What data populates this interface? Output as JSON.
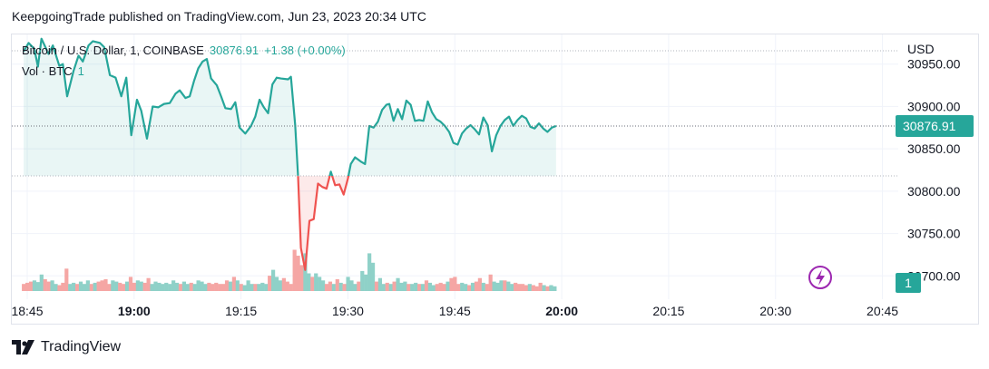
{
  "publisher_text": "KeepgoingTrade published on TradingView.com, Jun 23, 2023 20:34 UTC",
  "legend": {
    "symbol": "Bitcoin / U.S. Dollar, 1, COINBASE",
    "price": "30876.91",
    "change": "+1.38 (+0.00%)"
  },
  "volume_legend": {
    "label": "Vol · BTC",
    "value": "1"
  },
  "brand": {
    "name": "TradingView"
  },
  "colors": {
    "up": "#26a69a",
    "down": "#ef5350",
    "text": "#131722",
    "grid": "#f0f3fa"
  },
  "chart_data": {
    "type": "line",
    "ylabel": "USD",
    "ylim": [
      30680,
      30985
    ],
    "y_ticks": [
      "30950.00",
      "30900.00",
      "30850.00",
      "30800.00",
      "30750.00",
      "30700.00"
    ],
    "y_tick_values": [
      30950,
      30900,
      30850,
      30800,
      30750,
      30700
    ],
    "x_ticks": [
      {
        "label": "18:45",
        "minute": 0,
        "bold": false
      },
      {
        "label": "19:00",
        "minute": 15,
        "bold": true
      },
      {
        "label": "19:15",
        "minute": 30,
        "bold": false
      },
      {
        "label": "19:30",
        "minute": 45,
        "bold": false
      },
      {
        "label": "19:45",
        "minute": 60,
        "bold": false
      },
      {
        "label": "20:00",
        "minute": 75,
        "bold": true
      },
      {
        "label": "20:15",
        "minute": 90,
        "bold": false
      },
      {
        "label": "20:30",
        "minute": 105,
        "bold": false
      },
      {
        "label": "20:45",
        "minute": 120,
        "bold": false
      }
    ],
    "baseline": 30818,
    "last_price": 30876.91,
    "last_price_label": "30876.91",
    "volume_label": "1",
    "time_start": "18:45",
    "price": [
      {
        "t": -0.5,
        "y": 30965
      },
      {
        "t": 0.2,
        "y": 30975
      },
      {
        "t": 1.0,
        "y": 30968
      },
      {
        "t": 1.5,
        "y": 30947
      },
      {
        "t": 2.0,
        "y": 30980
      },
      {
        "t": 3.0,
        "y": 30962
      },
      {
        "t": 3.6,
        "y": 30972
      },
      {
        "t": 4.5,
        "y": 30948
      },
      {
        "t": 5.0,
        "y": 30950
      },
      {
        "t": 5.6,
        "y": 30912
      },
      {
        "t": 6.5,
        "y": 30942
      },
      {
        "t": 7.2,
        "y": 30960
      },
      {
        "t": 7.8,
        "y": 30953
      },
      {
        "t": 8.6,
        "y": 30972
      },
      {
        "t": 9.2,
        "y": 30977
      },
      {
        "t": 10.2,
        "y": 30975
      },
      {
        "t": 10.8,
        "y": 30970
      },
      {
        "t": 11.6,
        "y": 30937
      },
      {
        "t": 12.4,
        "y": 30934
      },
      {
        "t": 13.2,
        "y": 30912
      },
      {
        "t": 13.9,
        "y": 30934
      },
      {
        "t": 14.6,
        "y": 30866
      },
      {
        "t": 15.4,
        "y": 30908
      },
      {
        "t": 16.0,
        "y": 30895
      },
      {
        "t": 16.8,
        "y": 30862
      },
      {
        "t": 17.6,
        "y": 30900
      },
      {
        "t": 18.4,
        "y": 30899
      },
      {
        "t": 19.2,
        "y": 30903
      },
      {
        "t": 20.0,
        "y": 30904
      },
      {
        "t": 20.8,
        "y": 30915
      },
      {
        "t": 21.4,
        "y": 30919
      },
      {
        "t": 22.2,
        "y": 30910
      },
      {
        "t": 22.8,
        "y": 30912
      },
      {
        "t": 23.4,
        "y": 30930
      },
      {
        "t": 24.0,
        "y": 30945
      },
      {
        "t": 24.6,
        "y": 30953
      },
      {
        "t": 25.2,
        "y": 30956
      },
      {
        "t": 25.8,
        "y": 30933
      },
      {
        "t": 26.6,
        "y": 30925
      },
      {
        "t": 27.2,
        "y": 30912
      },
      {
        "t": 27.8,
        "y": 30898
      },
      {
        "t": 28.6,
        "y": 30897
      },
      {
        "t": 29.2,
        "y": 30905
      },
      {
        "t": 29.8,
        "y": 30875
      },
      {
        "t": 30.6,
        "y": 30868
      },
      {
        "t": 31.4,
        "y": 30877
      },
      {
        "t": 32.0,
        "y": 30888
      },
      {
        "t": 32.6,
        "y": 30908
      },
      {
        "t": 33.2,
        "y": 30899
      },
      {
        "t": 33.8,
        "y": 30892
      },
      {
        "t": 34.4,
        "y": 30926
      },
      {
        "t": 35.0,
        "y": 30934
      },
      {
        "t": 35.6,
        "y": 30933
      },
      {
        "t": 36.6,
        "y": 30932
      },
      {
        "t": 37.0,
        "y": 30935
      },
      {
        "t": 37.6,
        "y": 30878
      },
      {
        "t": 38.0,
        "y": 30818
      },
      {
        "t": 38.4,
        "y": 30733
      },
      {
        "t": 39.0,
        "y": 30707
      },
      {
        "t": 39.6,
        "y": 30765
      },
      {
        "t": 40.2,
        "y": 30767
      },
      {
        "t": 40.8,
        "y": 30809
      },
      {
        "t": 41.4,
        "y": 30805
      },
      {
        "t": 42.0,
        "y": 30803
      },
      {
        "t": 42.6,
        "y": 30823
      },
      {
        "t": 43.2,
        "y": 30807
      },
      {
        "t": 43.8,
        "y": 30808
      },
      {
        "t": 44.4,
        "y": 30796
      },
      {
        "t": 45.0,
        "y": 30815
      },
      {
        "t": 45.4,
        "y": 30832
      },
      {
        "t": 46.0,
        "y": 30840
      },
      {
        "t": 46.8,
        "y": 30835
      },
      {
        "t": 47.4,
        "y": 30832
      },
      {
        "t": 48.0,
        "y": 30877
      },
      {
        "t": 48.6,
        "y": 30875
      },
      {
        "t": 49.2,
        "y": 30882
      },
      {
        "t": 49.8,
        "y": 30896
      },
      {
        "t": 50.4,
        "y": 30902
      },
      {
        "t": 50.8,
        "y": 30903
      },
      {
        "t": 51.4,
        "y": 30883
      },
      {
        "t": 52.0,
        "y": 30897
      },
      {
        "t": 52.6,
        "y": 30885
      },
      {
        "t": 53.2,
        "y": 30907
      },
      {
        "t": 53.8,
        "y": 30902
      },
      {
        "t": 54.4,
        "y": 30883
      },
      {
        "t": 55.0,
        "y": 30884
      },
      {
        "t": 55.6,
        "y": 30883
      },
      {
        "t": 56.2,
        "y": 30906
      },
      {
        "t": 56.8,
        "y": 30893
      },
      {
        "t": 57.4,
        "y": 30885
      },
      {
        "t": 58.0,
        "y": 30882
      },
      {
        "t": 58.6,
        "y": 30877
      },
      {
        "t": 59.2,
        "y": 30870
      },
      {
        "t": 59.8,
        "y": 30857
      },
      {
        "t": 60.4,
        "y": 30855
      },
      {
        "t": 61.0,
        "y": 30868
      },
      {
        "t": 61.6,
        "y": 30874
      },
      {
        "t": 62.2,
        "y": 30878
      },
      {
        "t": 62.8,
        "y": 30873
      },
      {
        "t": 63.4,
        "y": 30867
      },
      {
        "t": 64.0,
        "y": 30887
      },
      {
        "t": 64.6,
        "y": 30878
      },
      {
        "t": 65.2,
        "y": 30847
      },
      {
        "t": 65.8,
        "y": 30866
      },
      {
        "t": 66.4,
        "y": 30877
      },
      {
        "t": 67.0,
        "y": 30884
      },
      {
        "t": 67.6,
        "y": 30888
      },
      {
        "t": 68.2,
        "y": 30877
      },
      {
        "t": 68.8,
        "y": 30884
      },
      {
        "t": 69.4,
        "y": 30889
      },
      {
        "t": 70.0,
        "y": 30886
      },
      {
        "t": 70.6,
        "y": 30876
      },
      {
        "t": 71.2,
        "y": 30874
      },
      {
        "t": 71.8,
        "y": 30880
      },
      {
        "t": 72.4,
        "y": 30874
      },
      {
        "t": 73.0,
        "y": 30870
      },
      {
        "t": 73.6,
        "y": 30875
      },
      {
        "t": 74.2,
        "y": 30877
      }
    ],
    "volume": [
      {
        "t": -0.5,
        "v": 0.3,
        "up": false
      },
      {
        "t": 0.0,
        "v": 0.35,
        "up": false
      },
      {
        "t": 0.5,
        "v": 0.4,
        "up": false
      },
      {
        "t": 1.0,
        "v": 0.45,
        "up": true
      },
      {
        "t": 1.5,
        "v": 0.38,
        "up": true
      },
      {
        "t": 2.0,
        "v": 0.7,
        "up": true
      },
      {
        "t": 2.5,
        "v": 0.5,
        "up": false
      },
      {
        "t": 3.0,
        "v": 0.4,
        "up": false
      },
      {
        "t": 3.5,
        "v": 0.45,
        "up": true
      },
      {
        "t": 4.0,
        "v": 0.3,
        "up": true
      },
      {
        "t": 4.5,
        "v": 0.25,
        "up": false
      },
      {
        "t": 5.0,
        "v": 0.35,
        "up": false
      },
      {
        "t": 5.5,
        "v": 0.95,
        "up": false
      },
      {
        "t": 6.0,
        "v": 0.3,
        "up": true
      },
      {
        "t": 6.5,
        "v": 0.35,
        "up": true
      },
      {
        "t": 7.0,
        "v": 0.3,
        "up": false
      },
      {
        "t": 7.5,
        "v": 0.4,
        "up": true
      },
      {
        "t": 8.0,
        "v": 0.3,
        "up": true
      },
      {
        "t": 8.5,
        "v": 0.45,
        "up": true
      },
      {
        "t": 9.0,
        "v": 0.3,
        "up": false
      },
      {
        "t": 9.5,
        "v": 0.35,
        "up": true
      },
      {
        "t": 10.0,
        "v": 0.4,
        "up": false
      },
      {
        "t": 10.5,
        "v": 0.45,
        "up": false
      },
      {
        "t": 11.0,
        "v": 0.5,
        "up": false
      },
      {
        "t": 11.5,
        "v": 0.3,
        "up": false
      },
      {
        "t": 12.0,
        "v": 0.45,
        "up": true
      },
      {
        "t": 12.5,
        "v": 0.4,
        "up": true
      },
      {
        "t": 13.0,
        "v": 0.35,
        "up": false
      },
      {
        "t": 13.5,
        "v": 0.3,
        "up": false
      },
      {
        "t": 14.0,
        "v": 0.4,
        "up": true
      },
      {
        "t": 14.5,
        "v": 0.6,
        "up": false
      },
      {
        "t": 15.0,
        "v": 0.35,
        "up": false
      },
      {
        "t": 15.5,
        "v": 0.45,
        "up": true
      },
      {
        "t": 16.0,
        "v": 0.4,
        "up": true
      },
      {
        "t": 16.5,
        "v": 0.35,
        "up": false
      },
      {
        "t": 17.0,
        "v": 0.55,
        "up": false
      },
      {
        "t": 17.5,
        "v": 0.3,
        "up": true
      },
      {
        "t": 18.0,
        "v": 0.4,
        "up": true
      },
      {
        "t": 18.5,
        "v": 0.35,
        "up": true
      },
      {
        "t": 19.0,
        "v": 0.3,
        "up": true
      },
      {
        "t": 19.5,
        "v": 0.35,
        "up": true
      },
      {
        "t": 20.0,
        "v": 0.3,
        "up": true
      },
      {
        "t": 20.5,
        "v": 0.45,
        "up": true
      },
      {
        "t": 21.0,
        "v": 0.35,
        "up": true
      },
      {
        "t": 21.5,
        "v": 0.3,
        "up": false
      },
      {
        "t": 22.0,
        "v": 0.4,
        "up": true
      },
      {
        "t": 22.5,
        "v": 0.3,
        "up": true
      },
      {
        "t": 23.0,
        "v": 0.35,
        "up": false
      },
      {
        "t": 23.5,
        "v": 0.3,
        "up": true
      },
      {
        "t": 24.0,
        "v": 0.45,
        "up": true
      },
      {
        "t": 24.5,
        "v": 0.4,
        "up": true
      },
      {
        "t": 25.0,
        "v": 0.3,
        "up": true
      },
      {
        "t": 25.5,
        "v": 0.35,
        "up": false
      },
      {
        "t": 26.0,
        "v": 0.3,
        "up": false
      },
      {
        "t": 26.5,
        "v": 0.35,
        "up": false
      },
      {
        "t": 27.0,
        "v": 0.3,
        "up": false
      },
      {
        "t": 27.5,
        "v": 0.3,
        "up": false
      },
      {
        "t": 28.0,
        "v": 0.45,
        "up": false
      },
      {
        "t": 28.5,
        "v": 0.4,
        "up": true
      },
      {
        "t": 29.0,
        "v": 0.6,
        "up": false
      },
      {
        "t": 29.5,
        "v": 0.45,
        "up": true
      },
      {
        "t": 30.0,
        "v": 0.3,
        "up": false
      },
      {
        "t": 30.5,
        "v": 0.25,
        "up": true
      },
      {
        "t": 31.0,
        "v": 0.45,
        "up": true
      },
      {
        "t": 31.5,
        "v": 0.3,
        "up": true
      },
      {
        "t": 32.0,
        "v": 0.3,
        "up": false
      },
      {
        "t": 32.5,
        "v": 0.3,
        "up": true
      },
      {
        "t": 33.0,
        "v": 0.35,
        "up": true
      },
      {
        "t": 33.5,
        "v": 0.3,
        "up": true
      },
      {
        "t": 34.0,
        "v": 0.65,
        "up": false
      },
      {
        "t": 34.5,
        "v": 0.9,
        "up": true
      },
      {
        "t": 35.0,
        "v": 0.6,
        "up": true
      },
      {
        "t": 35.5,
        "v": 0.45,
        "up": true
      },
      {
        "t": 36.0,
        "v": 0.55,
        "up": false
      },
      {
        "t": 36.5,
        "v": 0.4,
        "up": false
      },
      {
        "t": 37.0,
        "v": 0.3,
        "up": false
      },
      {
        "t": 37.5,
        "v": 1.75,
        "up": false
      },
      {
        "t": 38.0,
        "v": 1.5,
        "up": false
      },
      {
        "t": 38.5,
        "v": 1.1,
        "up": false
      },
      {
        "t": 39.0,
        "v": 1.6,
        "up": true
      },
      {
        "t": 39.5,
        "v": 0.75,
        "up": true
      },
      {
        "t": 40.0,
        "v": 0.6,
        "up": false
      },
      {
        "t": 40.5,
        "v": 0.75,
        "up": true
      },
      {
        "t": 41.0,
        "v": 0.6,
        "up": true
      },
      {
        "t": 41.5,
        "v": 0.45,
        "up": true
      },
      {
        "t": 42.0,
        "v": 0.3,
        "up": false
      },
      {
        "t": 42.5,
        "v": 0.4,
        "up": false
      },
      {
        "t": 43.0,
        "v": 0.3,
        "up": true
      },
      {
        "t": 43.5,
        "v": 0.5,
        "up": false
      },
      {
        "t": 44.0,
        "v": 0.35,
        "up": true
      },
      {
        "t": 44.5,
        "v": 0.3,
        "up": false
      },
      {
        "t": 45.0,
        "v": 0.6,
        "up": true
      },
      {
        "t": 45.5,
        "v": 0.45,
        "up": true
      },
      {
        "t": 46.0,
        "v": 0.3,
        "up": true
      },
      {
        "t": 46.5,
        "v": 0.4,
        "up": false
      },
      {
        "t": 47.0,
        "v": 0.85,
        "up": true
      },
      {
        "t": 47.5,
        "v": 0.7,
        "up": true
      },
      {
        "t": 48.0,
        "v": 1.6,
        "up": true
      },
      {
        "t": 48.5,
        "v": 1.2,
        "up": true
      },
      {
        "t": 49.0,
        "v": 0.4,
        "up": false
      },
      {
        "t": 49.5,
        "v": 0.55,
        "up": true
      },
      {
        "t": 50.0,
        "v": 0.3,
        "up": true
      },
      {
        "t": 50.5,
        "v": 0.35,
        "up": false
      },
      {
        "t": 51.0,
        "v": 0.3,
        "up": true
      },
      {
        "t": 51.5,
        "v": 0.4,
        "up": false
      },
      {
        "t": 52.0,
        "v": 0.55,
        "up": true
      },
      {
        "t": 52.5,
        "v": 0.35,
        "up": true
      },
      {
        "t": 53.0,
        "v": 0.4,
        "up": true
      },
      {
        "t": 53.5,
        "v": 0.3,
        "up": false
      },
      {
        "t": 54.0,
        "v": 0.3,
        "up": true
      },
      {
        "t": 54.5,
        "v": 0.35,
        "up": true
      },
      {
        "t": 55.0,
        "v": 0.3,
        "up": false
      },
      {
        "t": 55.5,
        "v": 0.3,
        "up": true
      },
      {
        "t": 56.0,
        "v": 0.45,
        "up": false
      },
      {
        "t": 56.5,
        "v": 0.35,
        "up": true
      },
      {
        "t": 57.0,
        "v": 0.25,
        "up": true
      },
      {
        "t": 57.5,
        "v": 0.3,
        "up": false
      },
      {
        "t": 58.0,
        "v": 0.35,
        "up": false
      },
      {
        "t": 58.5,
        "v": 0.3,
        "up": false
      },
      {
        "t": 59.0,
        "v": 0.4,
        "up": true
      },
      {
        "t": 59.5,
        "v": 0.55,
        "up": false
      },
      {
        "t": 60.0,
        "v": 0.6,
        "up": false
      },
      {
        "t": 60.5,
        "v": 0.3,
        "up": false
      },
      {
        "t": 61.0,
        "v": 0.35,
        "up": true
      },
      {
        "t": 61.5,
        "v": 0.3,
        "up": true
      },
      {
        "t": 62.0,
        "v": 0.25,
        "up": false
      },
      {
        "t": 62.5,
        "v": 0.35,
        "up": true
      },
      {
        "t": 63.0,
        "v": 0.4,
        "up": false
      },
      {
        "t": 63.5,
        "v": 0.55,
        "up": false
      },
      {
        "t": 64.0,
        "v": 0.35,
        "up": true
      },
      {
        "t": 64.5,
        "v": 0.3,
        "up": false
      },
      {
        "t": 65.0,
        "v": 0.7,
        "up": false
      },
      {
        "t": 65.5,
        "v": 0.4,
        "up": true
      },
      {
        "t": 66.0,
        "v": 0.35,
        "up": true
      },
      {
        "t": 66.5,
        "v": 0.45,
        "up": true
      },
      {
        "t": 67.0,
        "v": 0.45,
        "up": false
      },
      {
        "t": 67.5,
        "v": 0.4,
        "up": true
      },
      {
        "t": 68.0,
        "v": 0.3,
        "up": true
      },
      {
        "t": 68.5,
        "v": 0.35,
        "up": false
      },
      {
        "t": 69.0,
        "v": 0.3,
        "up": false
      },
      {
        "t": 69.5,
        "v": 0.3,
        "up": false
      },
      {
        "t": 70.0,
        "v": 0.25,
        "up": false
      },
      {
        "t": 70.5,
        "v": 0.3,
        "up": true
      },
      {
        "t": 71.0,
        "v": 0.25,
        "up": false
      },
      {
        "t": 71.5,
        "v": 0.2,
        "up": false
      },
      {
        "t": 72.0,
        "v": 0.35,
        "up": false
      },
      {
        "t": 72.5,
        "v": 0.25,
        "up": true
      },
      {
        "t": 73.0,
        "v": 0.2,
        "up": false
      },
      {
        "t": 73.5,
        "v": 0.25,
        "up": true
      },
      {
        "t": 74.0,
        "v": 0.2,
        "up": true
      }
    ]
  }
}
